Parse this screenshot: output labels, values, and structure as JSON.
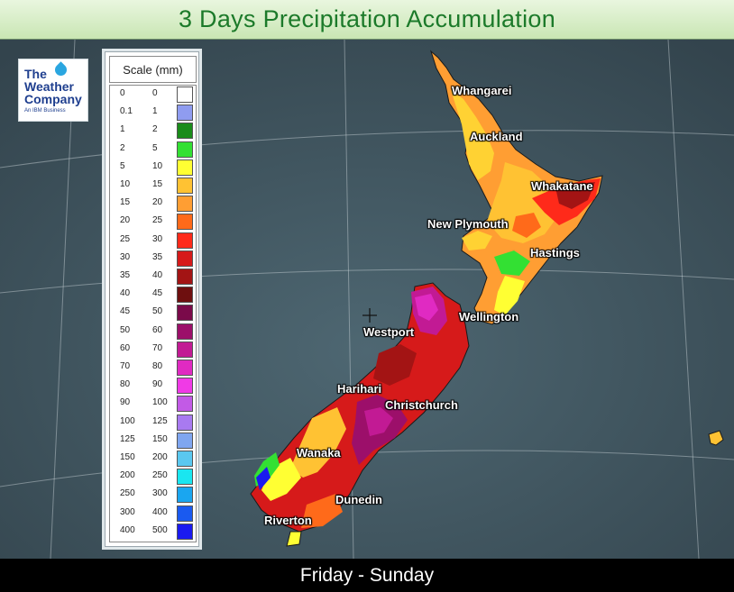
{
  "title": "3 Days Precipitation Accumulation",
  "footer": "Friday - Sunday",
  "logo": {
    "line1": "The",
    "line2": "Weather",
    "line3": "Company",
    "tagline": "An IBM Business"
  },
  "legend": {
    "title": "Scale (mm)",
    "rows": [
      {
        "from": "0",
        "to": "0",
        "color": "#ffffff"
      },
      {
        "from": "0.1",
        "to": "1",
        "color": "#8f9cf0"
      },
      {
        "from": "1",
        "to": "2",
        "color": "#1a8c1a"
      },
      {
        "from": "2",
        "to": "5",
        "color": "#33e033"
      },
      {
        "from": "5",
        "to": "10",
        "color": "#ffff33"
      },
      {
        "from": "10",
        "to": "15",
        "color": "#ffc233"
      },
      {
        "from": "15",
        "to": "20",
        "color": "#ff9e33"
      },
      {
        "from": "20",
        "to": "25",
        "color": "#ff6a1a"
      },
      {
        "from": "25",
        "to": "30",
        "color": "#ff2a1a"
      },
      {
        "from": "30",
        "to": "35",
        "color": "#d61a1a"
      },
      {
        "from": "35",
        "to": "40",
        "color": "#a31414"
      },
      {
        "from": "40",
        "to": "45",
        "color": "#6e0f0f"
      },
      {
        "from": "45",
        "to": "50",
        "color": "#7a0a4a"
      },
      {
        "from": "50",
        "to": "60",
        "color": "#9c0f6a"
      },
      {
        "from": "60",
        "to": "70",
        "color": "#c21a94"
      },
      {
        "from": "70",
        "to": "80",
        "color": "#e02ac2"
      },
      {
        "from": "80",
        "to": "90",
        "color": "#f03ae6"
      },
      {
        "from": "90",
        "to": "100",
        "color": "#c25ae6"
      },
      {
        "from": "100",
        "to": "125",
        "color": "#a87af0"
      },
      {
        "from": "125",
        "to": "150",
        "color": "#7fa6f0"
      },
      {
        "from": "150",
        "to": "200",
        "color": "#5ac8f0"
      },
      {
        "from": "200",
        "to": "250",
        "color": "#1ae6f0"
      },
      {
        "from": "250",
        "to": "300",
        "color": "#1aa6f0"
      },
      {
        "from": "300",
        "to": "400",
        "color": "#1a5af0"
      },
      {
        "from": "400",
        "to": "500",
        "color": "#1a1af0"
      }
    ]
  },
  "cities": [
    {
      "name": "Whangarei"
    },
    {
      "name": "Auckland"
    },
    {
      "name": "Whakatane"
    },
    {
      "name": "New Plymouth"
    },
    {
      "name": "Hastings"
    },
    {
      "name": "Wellington"
    },
    {
      "name": "Westport"
    },
    {
      "name": "Harihari"
    },
    {
      "name": "Christchurch"
    },
    {
      "name": "Wanaka"
    },
    {
      "name": "Dunedin"
    },
    {
      "name": "Riverton"
    }
  ]
}
